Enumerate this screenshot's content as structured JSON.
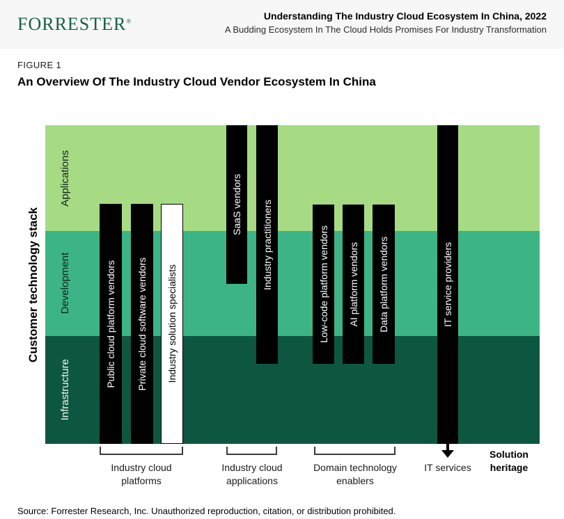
{
  "header": {
    "logo": "FORRESTER",
    "logo_reg": "®",
    "title": "Understanding The Industry Cloud Ecosystem In China, 2022",
    "subtitle": "A Budding Ecosystem In The Cloud Holds Promises For Industry Transformation"
  },
  "figure": {
    "label": "FIGURE 1",
    "title": "An Overview Of The Industry Cloud Vendor Ecosystem In China"
  },
  "chart": {
    "y_axis_label": "Customer technology stack",
    "bands": [
      {
        "label": "Applications",
        "color": "#a6db84"
      },
      {
        "label": "Development",
        "color": "#3cb486"
      },
      {
        "label": "Infrastructure",
        "color": "#0d5742"
      }
    ],
    "bars": [
      {
        "label": "Public cloud platform vendors",
        "style": "black"
      },
      {
        "label": "Private cloud software vendors",
        "style": "black"
      },
      {
        "label": "Industry solution specialists",
        "style": "white"
      },
      {
        "label": "SaaS vendors",
        "style": "black"
      },
      {
        "label": "Industry practitioners",
        "style": "black"
      },
      {
        "label": "Low-code platform vendors",
        "style": "black"
      },
      {
        "label": "AI platform vendors",
        "style": "black"
      },
      {
        "label": "Data platform vendors",
        "style": "black"
      },
      {
        "label": "IT service providers",
        "style": "black"
      }
    ],
    "groups": [
      {
        "label": "Industry cloud\nplatforms"
      },
      {
        "label": "Industry cloud\napplications"
      },
      {
        "label": "Domain technology\nenablers"
      },
      {
        "label": "IT services"
      }
    ],
    "x_axis_label": "Solution\nheritage"
  },
  "source": "Source: Forrester Research, Inc. Unauthorized reproduction, citation, or distribution prohibited."
}
